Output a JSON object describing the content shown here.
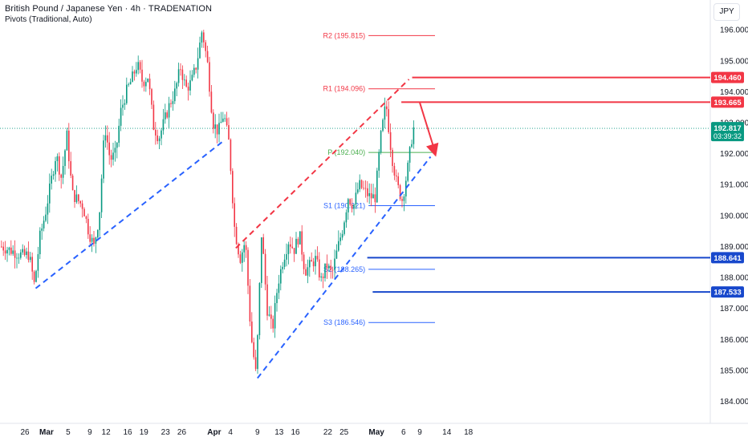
{
  "header": {
    "title": "British Pound / Japanese Yen · 4h · TRADENATION",
    "subtitle": "Pivots (Traditional, Auto)",
    "currency": "JPY"
  },
  "chart_data": {
    "type": "candlestick",
    "title": "British Pound / Japanese Yen · 4h · TRADENATION",
    "subtitle": "Pivots (Traditional, Auto)",
    "ylim": [
      183.6,
      196.6
    ],
    "y_ticks": [
      "184.000",
      "185.000",
      "186.000",
      "187.000",
      "188.000",
      "189.000",
      "190.000",
      "191.000",
      "192.000",
      "193.000",
      "194.000",
      "195.000",
      "196.000"
    ],
    "x_ticks": [
      "26",
      "Mar",
      "5",
      "9",
      "12",
      "16",
      "19",
      "23",
      "26",
      "Apr",
      "4",
      "9",
      "13",
      "16",
      "22",
      "25",
      "May",
      "6",
      "9",
      "14",
      "18"
    ],
    "last_price": {
      "value": 192.817,
      "label": "192.817",
      "countdown": "03:39:32"
    },
    "pivots": [
      {
        "name": "R2",
        "label": "R2 (195.815)",
        "value": 195.815,
        "color": "#f23645"
      },
      {
        "name": "R1",
        "label": "R1 (194.096)",
        "value": 194.096,
        "color": "#f23645"
      },
      {
        "name": "P",
        "label": "P (192.040)",
        "value": 192.04,
        "color": "#4caf50"
      },
      {
        "name": "S1",
        "label": "S1 (190.321)",
        "value": 190.321,
        "color": "#2962ff"
      },
      {
        "name": "S2",
        "label": "S2 (188.265)",
        "value": 188.265,
        "color": "#2962ff"
      },
      {
        "name": "S3",
        "label": "S3 (186.546)",
        "value": 186.546,
        "color": "#2962ff"
      }
    ],
    "key_levels": [
      {
        "label": "194.460",
        "value": 194.46,
        "color": "#f23645"
      },
      {
        "label": "193.665",
        "value": 193.665,
        "color": "#f23645"
      },
      {
        "label": "188.641",
        "value": 188.641,
        "color": "#1848cc"
      },
      {
        "label": "187.533",
        "value": 187.533,
        "color": "#1848cc"
      }
    ],
    "trendlines": [
      {
        "name": "lower-trend-1",
        "color": "#2962ff",
        "from": {
          "date": "2024-02-28",
          "price": 187.65
        },
        "to": {
          "date": "2024-04-03",
          "price": 192.45
        }
      },
      {
        "name": "channel-top",
        "color": "#f23645",
        "from": {
          "date": "2024-04-05",
          "price": 188.95
        },
        "to": {
          "date": "2024-05-07",
          "price": 194.4
        }
      },
      {
        "name": "channel-bottom",
        "color": "#2962ff",
        "from": {
          "date": "2024-04-09",
          "price": 184.75
        },
        "to": {
          "date": "2024-05-11",
          "price": 191.9
        }
      }
    ],
    "projection_arrow": {
      "color": "#f23645",
      "from": {
        "date": "2024-05-09",
        "price": 193.65
      },
      "to": {
        "date": "2024-05-12",
        "price": 191.9
      }
    },
    "price_path": [
      [
        "2024-02-22",
        189.0
      ],
      [
        "2024-02-26",
        188.7
      ],
      [
        "2024-02-27",
        188.75
      ],
      [
        "2024-02-28",
        187.75
      ],
      [
        "2024-02-29",
        189.3
      ],
      [
        "2024-03-01",
        190.05
      ],
      [
        "2024-03-03",
        192.0
      ],
      [
        "2024-03-04",
        191.2
      ],
      [
        "2024-03-05",
        192.6
      ],
      [
        "2024-03-06",
        190.7
      ],
      [
        "2024-03-07",
        190.5
      ],
      [
        "2024-03-08",
        190.3
      ],
      [
        "2024-03-09",
        189.5
      ],
      [
        "2024-03-10",
        189.0
      ],
      [
        "2024-03-11",
        190.0
      ],
      [
        "2024-03-12",
        192.9
      ],
      [
        "2024-03-13",
        191.8
      ],
      [
        "2024-03-14",
        192.0
      ],
      [
        "2024-03-15",
        193.4
      ],
      [
        "2024-03-16",
        194.0
      ],
      [
        "2024-03-17",
        194.4
      ],
      [
        "2024-03-18",
        194.9
      ],
      [
        "2024-03-19",
        194.3
      ],
      [
        "2024-03-20",
        194.5
      ],
      [
        "2024-03-21",
        192.9
      ],
      [
        "2024-03-22",
        192.5
      ],
      [
        "2024-03-24",
        193.6
      ],
      [
        "2024-03-25",
        194.0
      ],
      [
        "2024-03-26",
        194.8
      ],
      [
        "2024-03-27",
        194.1
      ],
      [
        "2024-03-28",
        194.3
      ],
      [
        "2024-03-29",
        194.9
      ],
      [
        "2024-03-30",
        196.0
      ],
      [
        "2024-03-31",
        194.9
      ],
      [
        "2024-04-01",
        193.0
      ],
      [
        "2024-04-02",
        192.7
      ],
      [
        "2024-04-03",
        193.3
      ],
      [
        "2024-04-04",
        192.3
      ],
      [
        "2024-04-05",
        189.6
      ],
      [
        "2024-04-06",
        188.6
      ],
      [
        "2024-04-07",
        189.2
      ],
      [
        "2024-04-08",
        186.2
      ],
      [
        "2024-04-09",
        184.8
      ],
      [
        "2024-04-10",
        189.5
      ],
      [
        "2024-04-11",
        187.0
      ],
      [
        "2024-04-12",
        186.3
      ],
      [
        "2024-04-13",
        187.8
      ],
      [
        "2024-04-14",
        188.6
      ],
      [
        "2024-04-15",
        189.2
      ],
      [
        "2024-04-16",
        188.9
      ],
      [
        "2024-04-17",
        189.4
      ],
      [
        "2024-04-18",
        188.2
      ],
      [
        "2024-04-19",
        188.4
      ],
      [
        "2024-04-20",
        188.6
      ],
      [
        "2024-04-21",
        187.9
      ],
      [
        "2024-04-22",
        188.4
      ],
      [
        "2024-04-23",
        188.1
      ],
      [
        "2024-04-24",
        188.9
      ],
      [
        "2024-04-25",
        189.6
      ],
      [
        "2024-04-26",
        190.6
      ],
      [
        "2024-04-27",
        190.3
      ],
      [
        "2024-04-28",
        191.0
      ],
      [
        "2024-04-29",
        190.8
      ],
      [
        "2024-04-30",
        190.6
      ],
      [
        "2024-05-01",
        190.6
      ],
      [
        "2024-05-02",
        192.5
      ],
      [
        "2024-05-03",
        193.65
      ],
      [
        "2024-05-04",
        192.0
      ],
      [
        "2024-05-05",
        191.0
      ],
      [
        "2024-05-06",
        190.5
      ],
      [
        "2024-05-07",
        191.5
      ],
      [
        "2024-05-08",
        192.817
      ]
    ]
  }
}
